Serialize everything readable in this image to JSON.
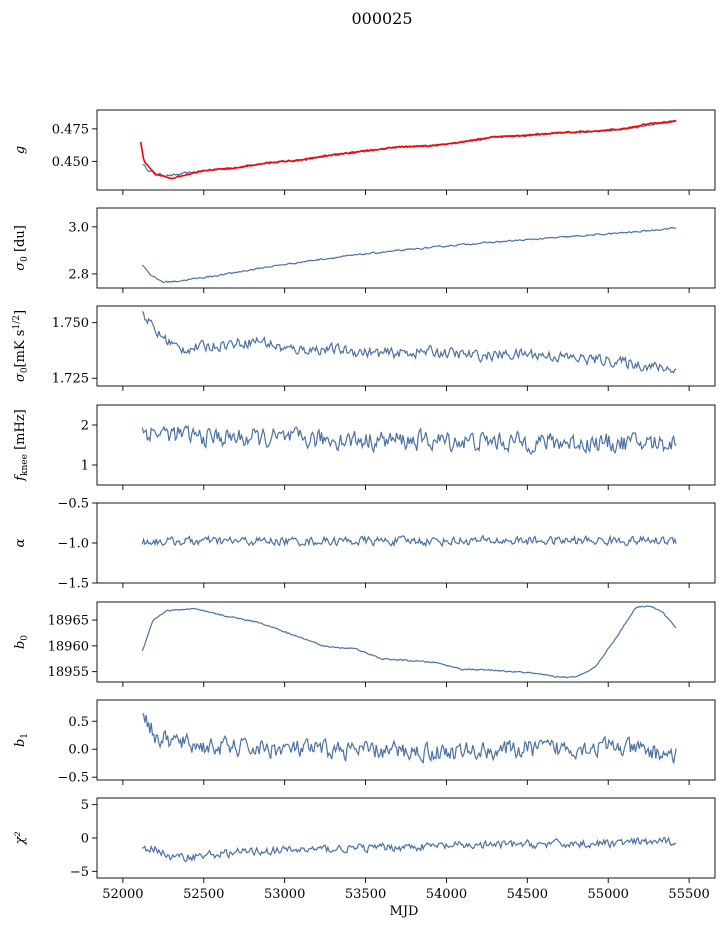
{
  "figure": {
    "title": "000025"
  },
  "colors": {
    "series": "#4c72a4",
    "fit": "#ff0000",
    "frame": "#000000"
  },
  "chart_data": [
    {
      "type": "line",
      "ylabel": "g",
      "ylim": [
        0.428,
        0.4895
      ],
      "yticks": [
        0.45,
        0.475
      ],
      "ytick_labels": [
        "0.450",
        "0.475"
      ],
      "series": [
        {
          "anchors": [
            [
              52120,
              0.448
            ],
            [
              52160,
              0.443
            ],
            [
              52220,
              0.44
            ],
            [
              52300,
              0.439
            ],
            [
              52500,
              0.443
            ],
            [
              52700,
              0.445
            ],
            [
              52900,
              0.449
            ],
            [
              53100,
              0.451
            ],
            [
              53300,
              0.455
            ],
            [
              53500,
              0.458
            ],
            [
              53700,
              0.461
            ],
            [
              53900,
              0.462
            ],
            [
              54100,
              0.465
            ],
            [
              54300,
              0.469
            ],
            [
              54500,
              0.47
            ],
            [
              54700,
              0.472
            ],
            [
              54900,
              0.473
            ],
            [
              55100,
              0.475
            ],
            [
              55250,
              0.478
            ],
            [
              55420,
              0.481
            ]
          ],
          "noise": 0.0008
        }
      ],
      "fit": {
        "anchors": [
          [
            52110,
            0.465
          ],
          [
            52130,
            0.45
          ],
          [
            52200,
            0.44
          ],
          [
            52300,
            0.437
          ],
          [
            52500,
            0.443
          ],
          [
            52700,
            0.445
          ],
          [
            52900,
            0.449
          ],
          [
            53100,
            0.451
          ],
          [
            53300,
            0.455
          ],
          [
            53500,
            0.458
          ],
          [
            53700,
            0.461
          ],
          [
            53900,
            0.462
          ],
          [
            54100,
            0.465
          ],
          [
            54300,
            0.469
          ],
          [
            54500,
            0.47
          ],
          [
            54700,
            0.472
          ],
          [
            54900,
            0.473
          ],
          [
            55100,
            0.475
          ],
          [
            55250,
            0.479
          ],
          [
            55420,
            0.481
          ]
        ]
      }
    },
    {
      "type": "line",
      "ylabel": "σ0 [du]",
      "ylim": [
        2.74,
        3.08
      ],
      "yticks": [
        2.8,
        3.0
      ],
      "ytick_labels": [
        "2.8",
        "3.0"
      ],
      "series": [
        {
          "anchors": [
            [
              52120,
              2.84
            ],
            [
              52180,
              2.79
            ],
            [
              52250,
              2.765
            ],
            [
              52350,
              2.77
            ],
            [
              52600,
              2.795
            ],
            [
              52900,
              2.83
            ],
            [
              53200,
              2.86
            ],
            [
              53500,
              2.885
            ],
            [
              53800,
              2.905
            ],
            [
              54100,
              2.925
            ],
            [
              54400,
              2.94
            ],
            [
              54700,
              2.955
            ],
            [
              55000,
              2.97
            ],
            [
              55200,
              2.98
            ],
            [
              55400,
              2.995
            ]
          ],
          "noise": 0.003
        }
      ]
    },
    {
      "type": "line",
      "ylabel": "σ0[mK s^1/2]",
      "ylim": [
        1.7215,
        1.7575
      ],
      "yticks": [
        1.725,
        1.75
      ],
      "ytick_labels": [
        "1.725",
        "1.750"
      ],
      "series": [
        {
          "anchors": [
            [
              52120,
              1.755
            ],
            [
              52200,
              1.746
            ],
            [
              52350,
              1.738
            ],
            [
              52600,
              1.74
            ],
            [
              52850,
              1.742
            ],
            [
              53000,
              1.738
            ],
            [
              53300,
              1.738
            ],
            [
              53600,
              1.736
            ],
            [
              53900,
              1.737
            ],
            [
              54200,
              1.735
            ],
            [
              54500,
              1.736
            ],
            [
              54800,
              1.734
            ],
            [
              55000,
              1.733
            ],
            [
              55200,
              1.731
            ],
            [
              55400,
              1.729
            ]
          ],
          "noise": 0.0022
        }
      ]
    },
    {
      "type": "line",
      "ylabel": "f_knee [mHz]",
      "ylim": [
        0.5,
        2.5
      ],
      "yticks": [
        1,
        2
      ],
      "ytick_labels": [
        "1",
        "2"
      ],
      "series": [
        {
          "anchors": [
            [
              52120,
              1.85
            ],
            [
              52500,
              1.7
            ],
            [
              53000,
              1.65
            ],
            [
              54000,
              1.6
            ],
            [
              55000,
              1.55
            ],
            [
              55400,
              1.55
            ]
          ],
          "noise": 0.22
        }
      ]
    },
    {
      "type": "line",
      "ylabel": "α",
      "ylim": [
        -1.5,
        -0.5
      ],
      "yticks": [
        -1.5,
        -1.0,
        -0.5
      ],
      "ytick_labels": [
        "−1.5",
        "−1.0",
        "−0.5"
      ],
      "series": [
        {
          "anchors": [
            [
              52120,
              -0.98
            ],
            [
              55400,
              -0.97
            ]
          ],
          "noise": 0.05
        }
      ]
    },
    {
      "type": "line",
      "ylabel": "b0",
      "ylim": [
        18953,
        18968.5
      ],
      "yticks": [
        18955,
        18960,
        18965
      ],
      "ytick_labels": [
        "18955",
        "18960",
        "18965"
      ],
      "series": [
        {
          "anchors": [
            [
              52120,
              18959
            ],
            [
              52200,
              18965
            ],
            [
              52300,
              18966.8
            ],
            [
              52500,
              18967.2
            ],
            [
              52700,
              18966
            ],
            [
              53000,
              18964.5
            ],
            [
              53200,
              18962.5
            ],
            [
              53500,
              18959.8
            ],
            [
              53700,
              18959.5
            ],
            [
              53900,
              18957.5
            ],
            [
              54300,
              18956.8
            ],
            [
              54500,
              18955.5
            ],
            [
              54700,
              18955.3
            ],
            [
              55000,
              18954.8
            ],
            [
              55200,
              18954.0
            ],
            [
              55350,
              18953.9
            ],
            [
              55500,
              18956.0
            ],
            [
              55650,
              18961.5
            ],
            [
              55800,
              18967.5
            ],
            [
              55900,
              18967.8
            ],
            [
              56000,
              18966.5
            ],
            [
              56100,
              18963.5
            ]
          ],
          "noise": 0.12,
          "x_scale_note": ""
        }
      ]
    },
    {
      "type": "line",
      "ylabel": "b1",
      "ylim": [
        -0.55,
        0.88
      ],
      "yticks": [
        -0.5,
        0.0,
        0.5
      ],
      "ytick_labels": [
        "−0.5",
        "0.0",
        "0.5"
      ],
      "series": [
        {
          "anchors": [
            [
              52120,
              0.75
            ],
            [
              52200,
              0.2
            ],
            [
              52500,
              0.05
            ],
            [
              53000,
              0.0
            ],
            [
              54000,
              -0.05
            ],
            [
              55000,
              0.05
            ],
            [
              55400,
              -0.1
            ]
          ],
          "noise": 0.15
        }
      ]
    },
    {
      "type": "line",
      "ylabel": "χ²",
      "ylim": [
        -6,
        6
      ],
      "yticks": [
        -5,
        0,
        5
      ],
      "ytick_labels": [
        "−5",
        "0",
        "5"
      ],
      "xlabel": "MJD",
      "xticks": [
        52000,
        52500,
        53000,
        53500,
        54000,
        54500,
        55000,
        55500
      ],
      "xtick_labels": [
        "52000",
        "52500",
        "53000",
        "53500",
        "54000",
        "54500",
        "55000",
        "55500"
      ],
      "series": [
        {
          "anchors": [
            [
              52120,
              -2.0
            ],
            [
              52200,
              -1.5
            ],
            [
              52300,
              -3.0
            ],
            [
              52500,
              -2.6
            ],
            [
              52800,
              -2.0
            ],
            [
              53200,
              -1.7
            ],
            [
              53800,
              -1.3
            ],
            [
              54400,
              -1.0
            ],
            [
              55000,
              -0.8
            ],
            [
              55400,
              -0.5
            ]
          ],
          "noise": 0.55
        }
      ]
    }
  ],
  "xaxis": {
    "xlim": [
      51840,
      55660
    ]
  }
}
